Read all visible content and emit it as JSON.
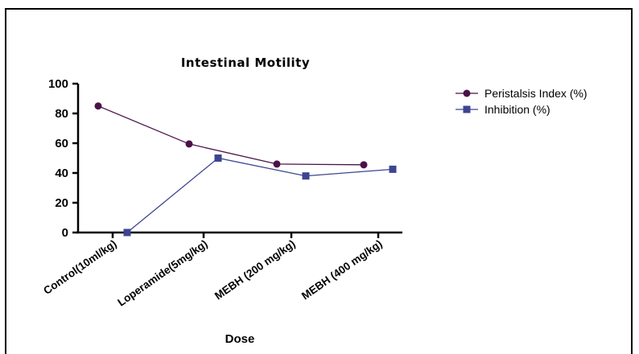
{
  "chart_data": {
    "type": "line",
    "title": "Intestinal Motility",
    "xlabel": "Dose",
    "ylabel": "",
    "categories": [
      "Control(10ml/kg)",
      "Loperamide(5mg/kg)",
      "MEBH (200 mg/kg)",
      "MEBH (400 mg/kg)"
    ],
    "ylim": [
      0,
      100
    ],
    "yticks": [
      "0",
      "20",
      "40",
      "60",
      "80",
      "100"
    ],
    "series": [
      {
        "name": "Peristalsis Index (%)",
        "values": [
          85,
          59.5,
          46,
          45.5
        ],
        "color": "#4b1248",
        "marker": "circle"
      },
      {
        "name": "Inhibition (%)",
        "values": [
          0,
          50,
          38,
          42.5
        ],
        "color": "#3d4591",
        "marker": "square"
      }
    ],
    "legend_position": "top-right",
    "grid": false
  }
}
